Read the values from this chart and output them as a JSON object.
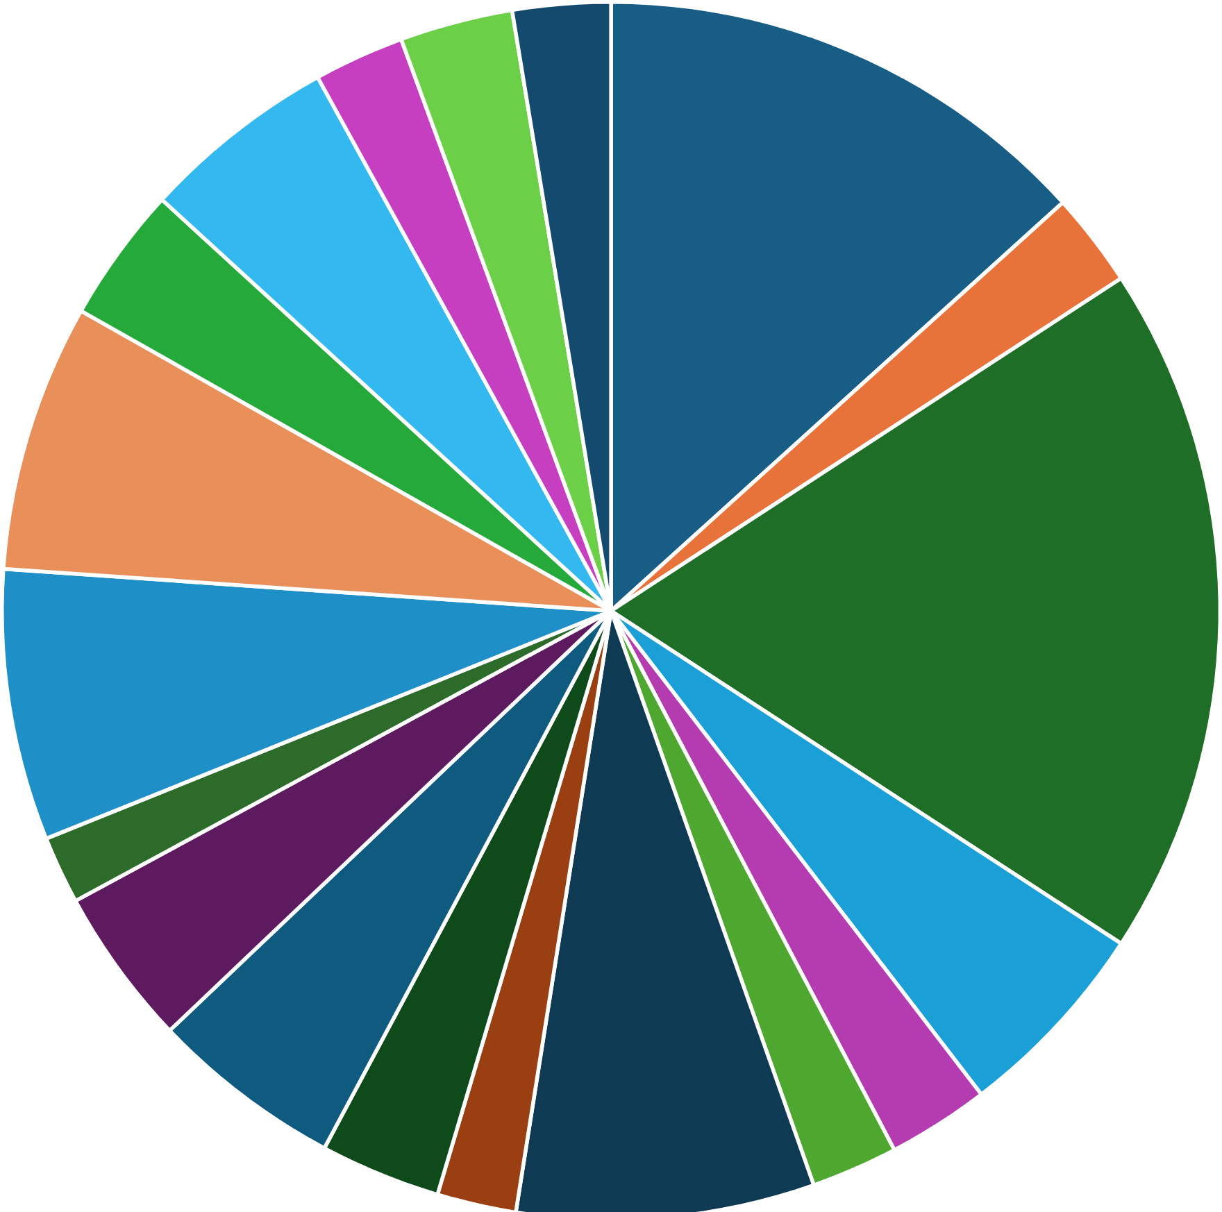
{
  "chart_data": {
    "type": "pie",
    "categories": [
      null,
      null,
      null,
      null,
      null,
      null,
      null,
      null,
      null,
      null,
      null,
      null,
      null,
      null,
      null,
      null,
      null,
      null,
      null
    ],
    "values": [
      13.3,
      2.5,
      18.4,
      5.4,
      2.7,
      2.3,
      7.9,
      2.1,
      3.2,
      5.1,
      4.2,
      1.8,
      7.2,
      7.1,
      3.6,
      5.2,
      2.4,
      3.0,
      2.6
    ],
    "colors": [
      "#175d86",
      "#e8733a",
      "#1e6e27",
      "#1a9fd6",
      "#b53cb0",
      "#4ea72e",
      "#0f3a54",
      "#9a3f12",
      "#0f4a1a",
      "#0f5b80",
      "#5e1a5e",
      "#2d6b2a",
      "#1f8fc7",
      "#e88f5a",
      "#24a93a",
      "#33b8ef",
      "#c63fc1",
      "#6ccf48",
      "#154a6f"
    ]
  }
}
